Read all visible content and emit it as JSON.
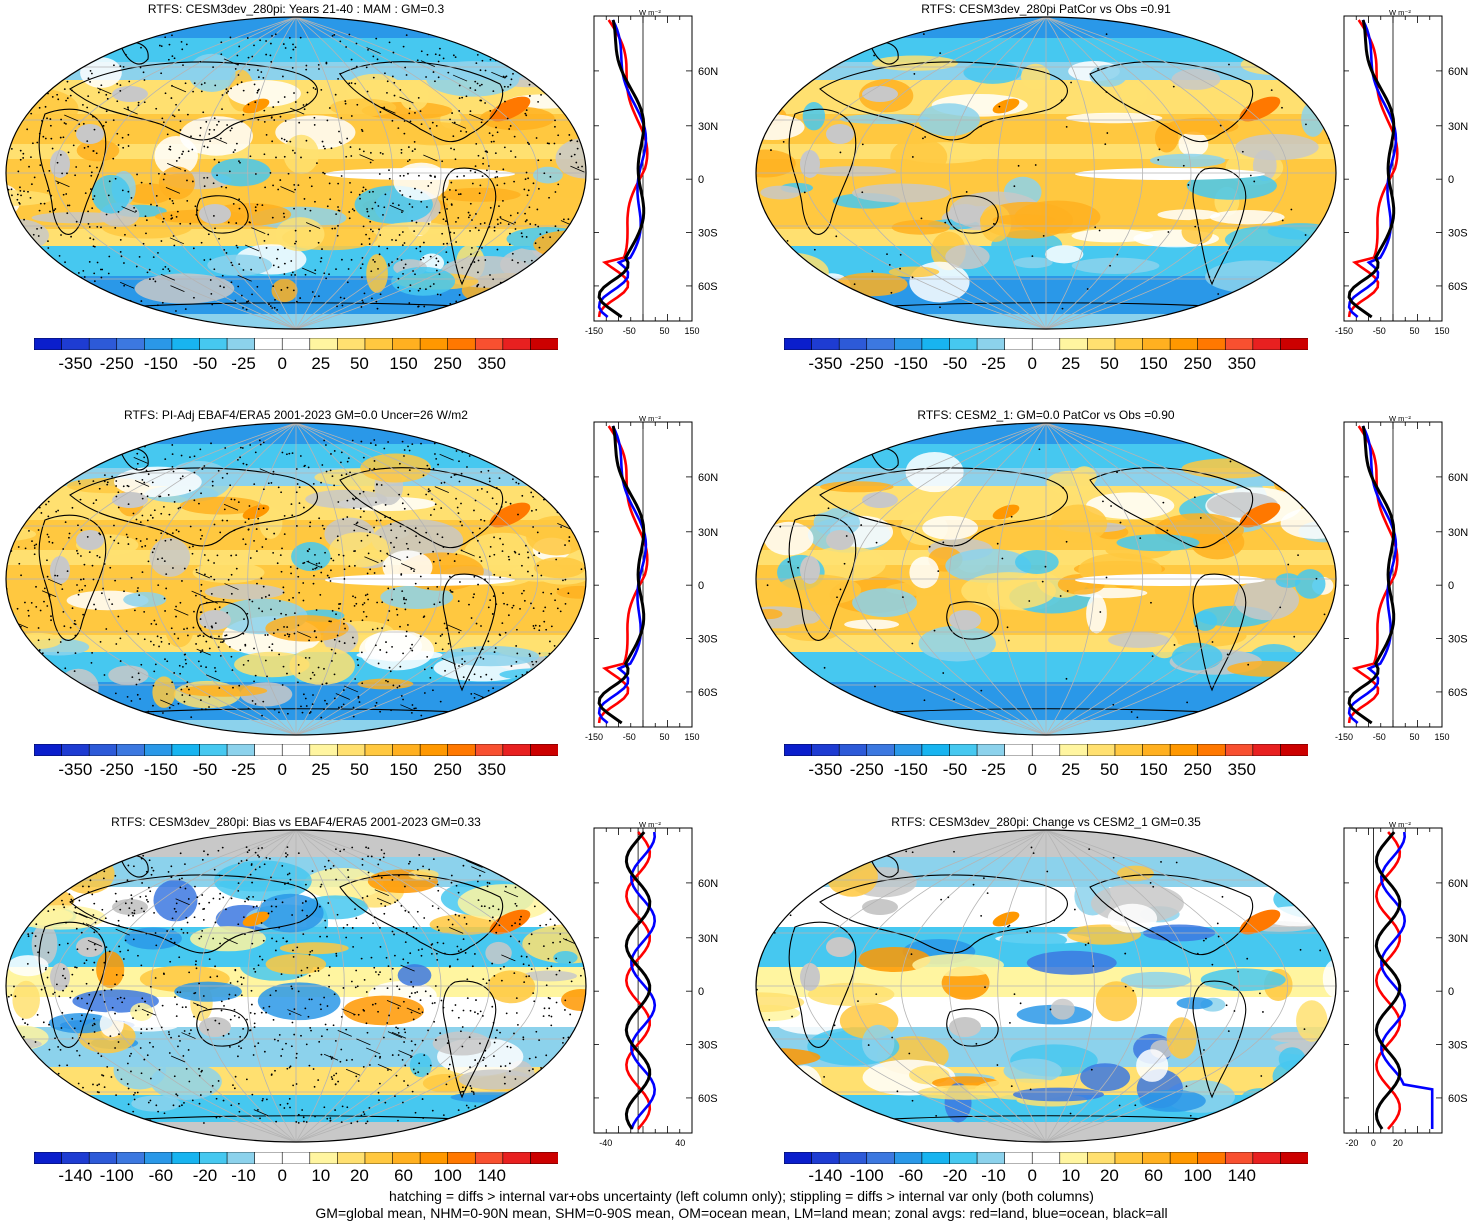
{
  "colors": {
    "scale": [
      "#0a1ecc",
      "#1e3cd2",
      "#2d5ad8",
      "#3c78e0",
      "#2a98e8",
      "#18b4f0",
      "#46c8f0",
      "#8cd2ec",
      "#ffffff",
      "#ffffff",
      "#fff5a0",
      "#ffe070",
      "#ffc840",
      "#ffb020",
      "#ff9800",
      "#ff7800",
      "#f85030",
      "#e82020",
      "#cc0000"
    ],
    "land_grey": "#c8c8c8",
    "graticule": "#b4b4b4",
    "zonal_land": "#ff0000",
    "zonal_ocean": "#0000ff",
    "zonal_all": "#000000"
  },
  "panels": [
    {
      "id": "p1",
      "title": "RTFS: CESM3dev_280pi: Years 21-40 : MAM : GM=0.3",
      "colorbar_labels": [
        "-350",
        "-250",
        "-150",
        "-50",
        "-25",
        "0",
        "25",
        "50",
        "150",
        "250",
        "350"
      ],
      "zonal": {
        "unit": "W m⁻²",
        "x_ticks": [
          "-150",
          "-50",
          "50",
          "150"
        ],
        "lat_ticks": [
          "60N",
          "30N",
          "0",
          "30S",
          "60S"
        ],
        "hatched": true
      }
    },
    {
      "id": "p2",
      "title": "RTFS: CESM3dev_280pi PatCor vs Obs =0.91",
      "colorbar_labels": [
        "-350",
        "-250",
        "-150",
        "-50",
        "-25",
        "0",
        "25",
        "50",
        "150",
        "250",
        "350"
      ],
      "zonal": {
        "unit": "W m⁻²",
        "x_ticks": [
          "-150",
          "-50",
          "50",
          "150"
        ],
        "lat_ticks": [
          "60N",
          "30N",
          "0",
          "30S",
          "60S"
        ],
        "hatched": false
      }
    },
    {
      "id": "p3",
      "title": "RTFS: PI-Adj EBAF4/ERA5 2001-2023 GM=0.0 Uncer=26 W/m2",
      "colorbar_labels": [
        "-350",
        "-250",
        "-150",
        "-50",
        "-25",
        "0",
        "25",
        "50",
        "150",
        "250",
        "350"
      ],
      "zonal": {
        "unit": "W m⁻²",
        "x_ticks": [
          "-150",
          "-50",
          "50",
          "150"
        ],
        "lat_ticks": [
          "60N",
          "30N",
          "0",
          "30S",
          "60S"
        ],
        "hatched": true
      }
    },
    {
      "id": "p4",
      "title": "RTFS: CESM2_1: GM=0.0 PatCor vs Obs =0.90",
      "colorbar_labels": [
        "-350",
        "-250",
        "-150",
        "-50",
        "-25",
        "0",
        "25",
        "50",
        "150",
        "250",
        "350"
      ],
      "zonal": {
        "unit": "W m⁻²",
        "x_ticks": [
          "-150",
          "-50",
          "50",
          "150"
        ],
        "lat_ticks": [
          "60N",
          "30N",
          "0",
          "30S",
          "60S"
        ],
        "hatched": false
      }
    },
    {
      "id": "p5",
      "title": "RTFS: CESM3dev_280pi: Bias vs EBAF4/ERA5 2001-2023 GM=0.33",
      "colorbar_labels": [
        "-140",
        "-100",
        "-60",
        "-20",
        "-10",
        "0",
        "10",
        "20",
        "60",
        "100",
        "140"
      ],
      "zonal": {
        "unit": "W m⁻²",
        "x_ticks": [
          "-40",
          "40"
        ],
        "lat_ticks": [
          "60N",
          "30N",
          "0",
          "30S",
          "60S"
        ],
        "hatched": true
      }
    },
    {
      "id": "p6",
      "title": "RTFS: CESM3dev_280pi: Change vs CESM2_1 GM=0.35",
      "colorbar_labels": [
        "-140",
        "-100",
        "-60",
        "-20",
        "-10",
        "0",
        "10",
        "20",
        "60",
        "100",
        "140"
      ],
      "zonal": {
        "unit": "W m⁻²",
        "x_ticks": [
          "-20",
          "0",
          "20"
        ],
        "lat_ticks": [
          "60N",
          "30N",
          "0",
          "30S",
          "60S"
        ],
        "hatched": false
      }
    }
  ],
  "footer": {
    "line1": "hatching = diffs > internal var+obs uncertainty (left column only); stippling = diffs > internal var only (both columns)",
    "line2": "GM=global mean, NHM=0-90N mean, SHM=0-90S mean, OM=ocean mean, LM=land mean; zonal avgs: red=land, blue=ocean, black=all"
  }
}
